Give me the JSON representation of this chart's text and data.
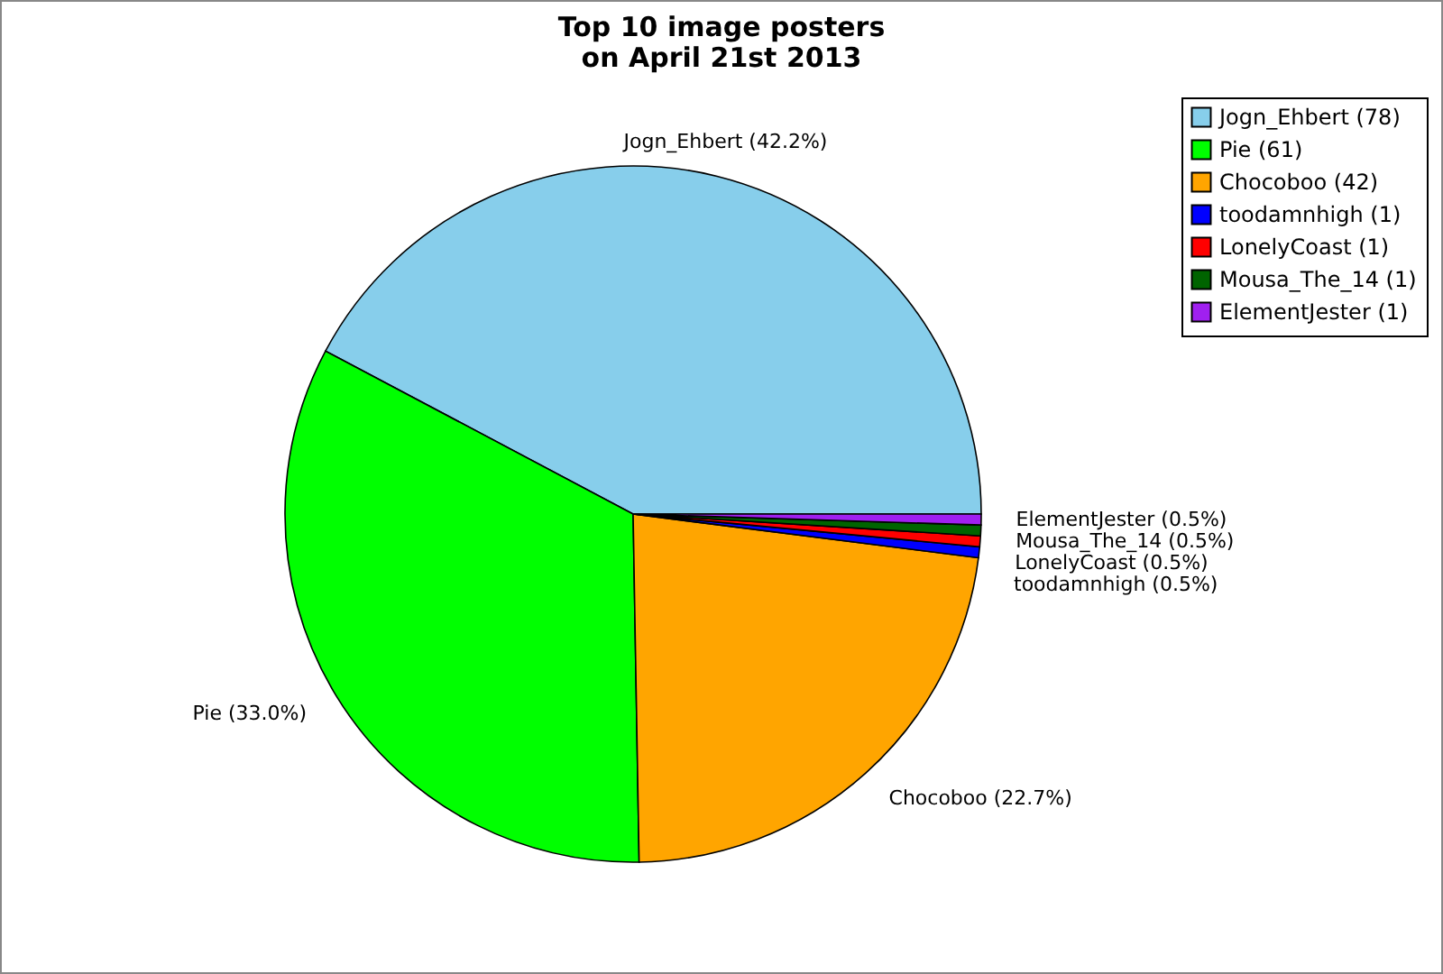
{
  "chart_data": {
    "type": "pie",
    "title": "Top 10 image posters\non April 21st 2013",
    "categories": [
      "Jogn_Ehbert (78)",
      "Pie (61)",
      "Chocoboo (42)",
      "toodamnhigh (1)",
      "LonelyCoast (1)",
      "Mousa_The_14 (1)",
      "ElementJester (1)"
    ],
    "values": [
      42.2,
      33.0,
      22.7,
      0.5,
      0.5,
      0.5,
      0.5
    ],
    "colors": [
      "#87ceeb",
      "#00ff00",
      "#ffa500",
      "#0000ff",
      "#ff0000",
      "#006400",
      "#a020f0"
    ],
    "value_labels": [
      "Jogn_Ehbert (42.2%)",
      "Pie (33.0%)",
      "Chocoboo (22.7%)",
      "toodamnhigh (0.5%)",
      "LonelyCoast (0.5%)",
      "Mousa_The_14 (0.5%)",
      "ElementJester (0.5%)"
    ],
    "legend": "top right"
  }
}
